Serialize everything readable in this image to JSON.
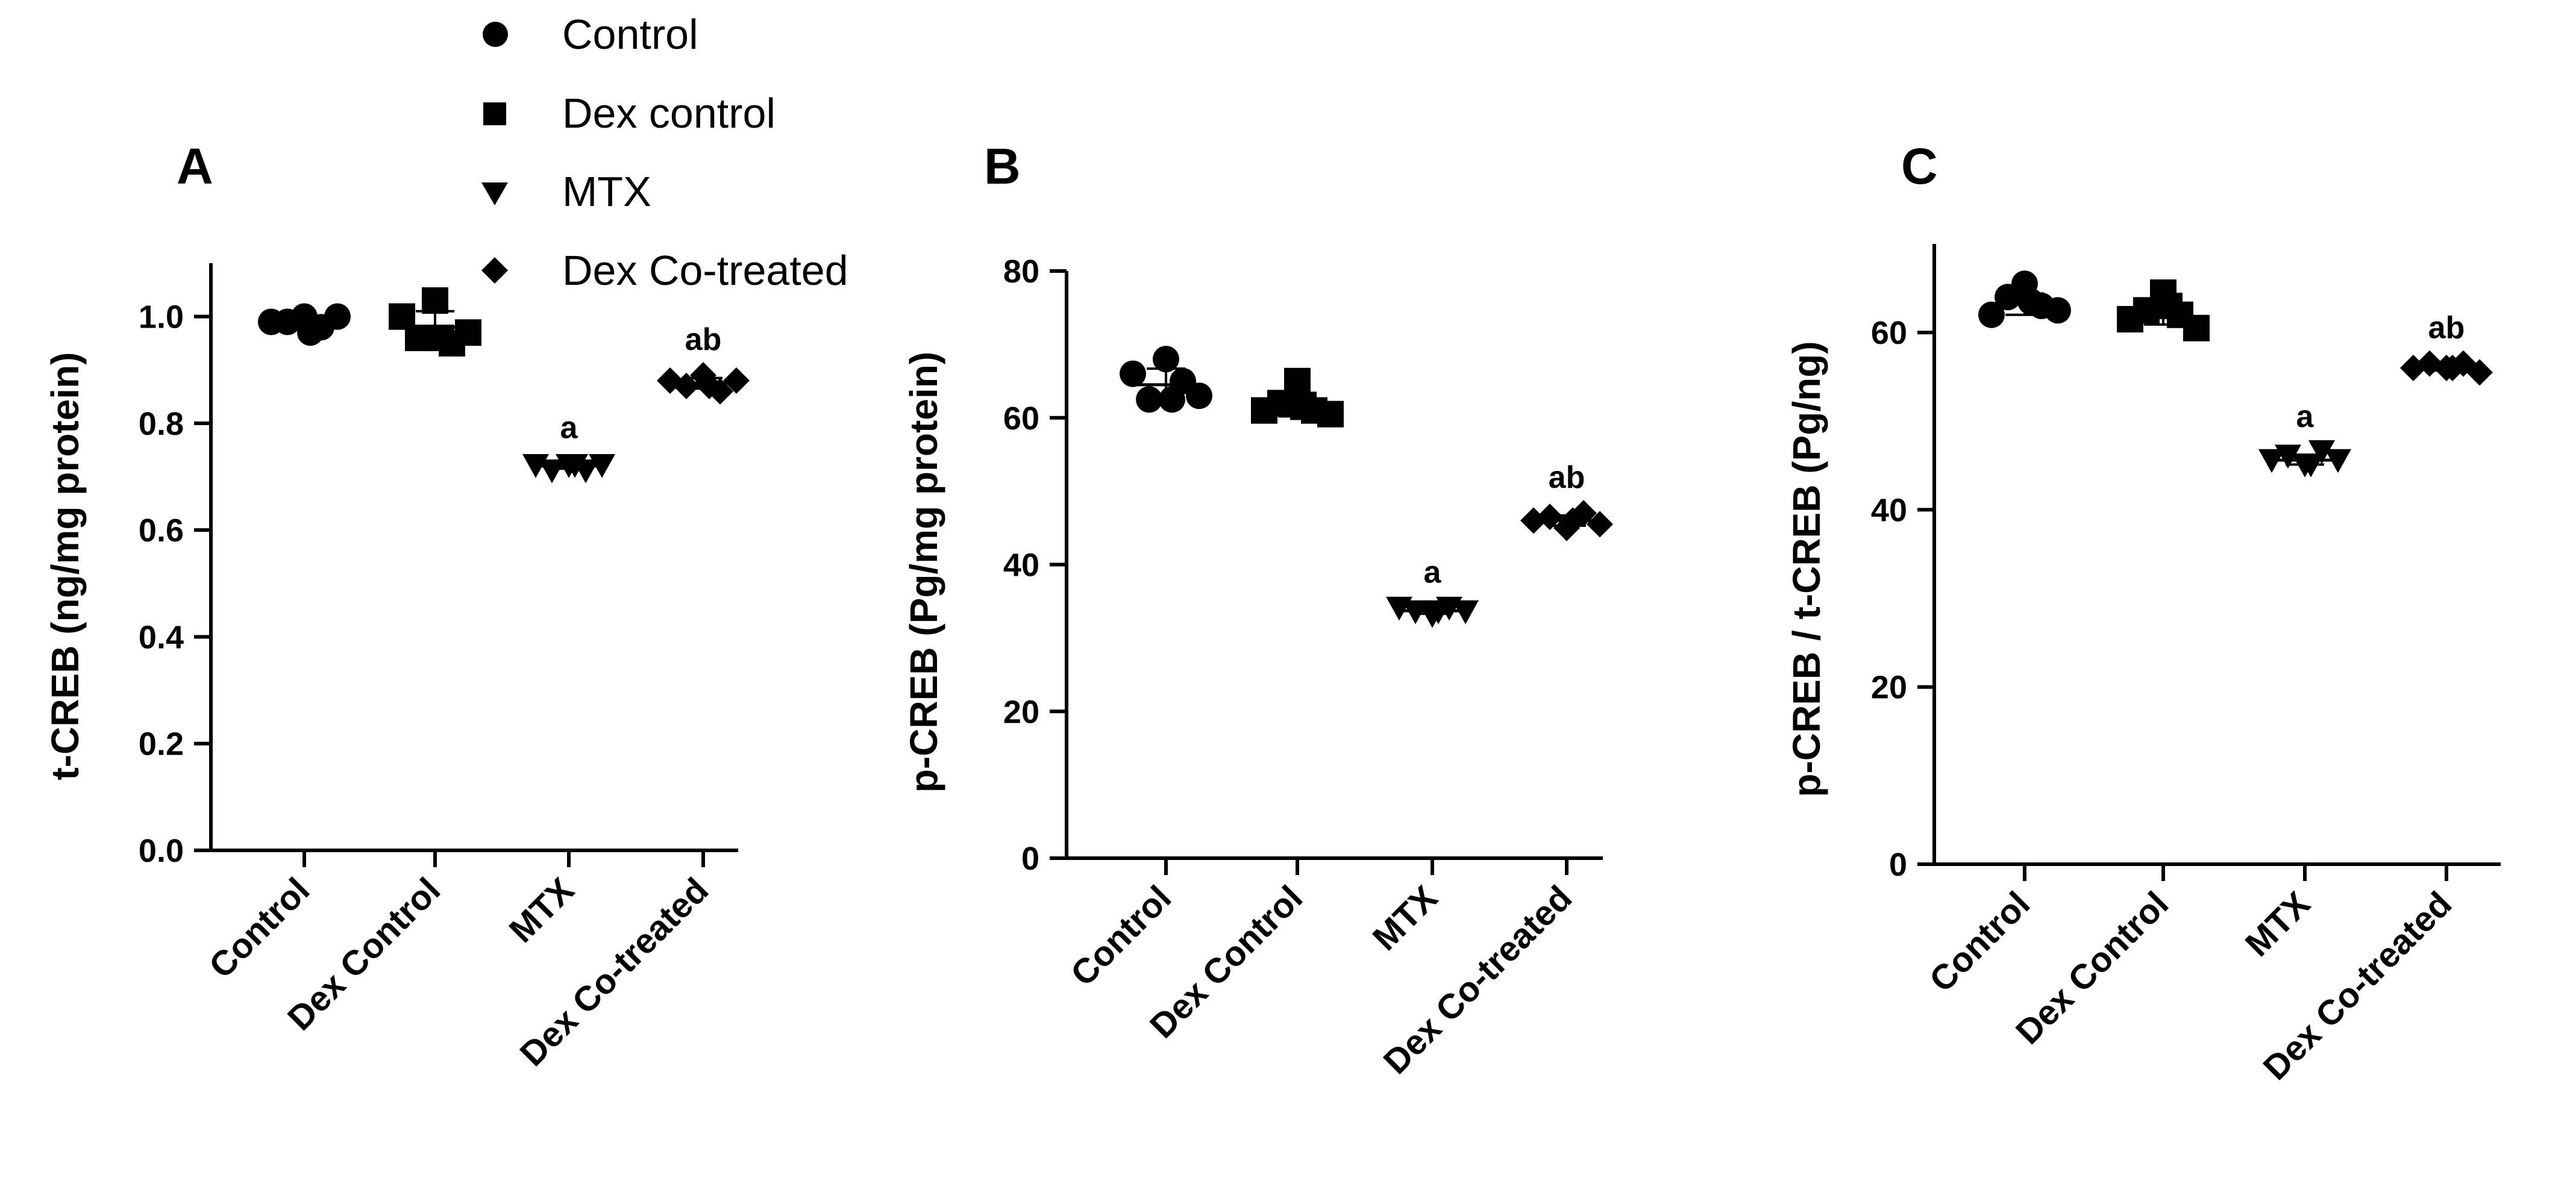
{
  "legend": [
    {
      "name": "Control",
      "marker": "circle"
    },
    {
      "name": "Dex control",
      "marker": "square"
    },
    {
      "name": "MTX",
      "marker": "triangle-down"
    },
    {
      "name": "Dex Co-treated",
      "marker": "diamond"
    }
  ],
  "chart_data": [
    {
      "type": "scatter",
      "panel": "A",
      "ylabel": "t-CREB (ng/mg protein)",
      "ylim": [
        0,
        1.1
      ],
      "yticks": [
        0.0,
        0.2,
        0.4,
        0.6,
        0.8,
        1.0
      ],
      "ytick_labels": [
        "0.0",
        "0.2",
        "0.4",
        "0.6",
        "0.8",
        "1.0"
      ],
      "categories": [
        "Control",
        "Dex Control",
        "MTX",
        "Dex Co-treated"
      ],
      "markers": [
        "circle",
        "square",
        "triangle-down",
        "diamond"
      ],
      "points": [
        [
          0.99,
          0.99,
          1.0,
          0.98,
          1.0,
          0.97
        ],
        [
          1.0,
          0.96,
          1.03,
          0.95,
          0.97,
          0.96
        ],
        [
          0.72,
          0.71,
          0.72,
          0.71,
          0.72,
          0.72
        ],
        [
          0.88,
          0.87,
          0.89,
          0.86,
          0.88,
          0.87
        ]
      ],
      "mean": [
        0.99,
        0.98,
        0.72,
        0.875
      ],
      "sd": [
        0.01,
        0.03,
        0.005,
        0.01
      ],
      "annotations": [
        "",
        "",
        "a",
        "ab"
      ]
    },
    {
      "type": "scatter",
      "panel": "B",
      "ylabel": "p-CREB (Pg/mg protein)",
      "ylim": [
        0,
        80
      ],
      "yticks": [
        0,
        20,
        40,
        60,
        80
      ],
      "ytick_labels": [
        "0",
        "20",
        "40",
        "60",
        "80"
      ],
      "categories": [
        "Control",
        "Dex Control",
        "MTX",
        "Dex Co-treated"
      ],
      "markers": [
        "circle",
        "square",
        "triangle-down",
        "diamond"
      ],
      "points": [
        [
          66,
          62.5,
          68,
          65,
          63,
          62.5
        ],
        [
          61,
          62,
          65,
          61,
          60.5,
          61.5
        ],
        [
          34,
          33.5,
          33,
          34,
          33.5,
          33.5
        ],
        [
          46,
          46.5,
          45,
          47,
          45.5,
          46
        ]
      ],
      "mean": [
        64.5,
        61.8,
        33.7,
        46
      ],
      "sd": [
        2.2,
        1.6,
        0.4,
        0.7
      ],
      "annotations": [
        "",
        "",
        "a",
        "ab"
      ]
    },
    {
      "type": "scatter",
      "panel": "C",
      "ylabel": "p-CREB / t-CREB (Pg/ng)",
      "ylim": [
        0,
        70
      ],
      "yticks": [
        0,
        20,
        40,
        60
      ],
      "ytick_labels": [
        "0",
        "20",
        "40",
        "60"
      ],
      "categories": [
        "Control",
        "Dex Control",
        "MTX",
        "Dex Co-treated"
      ],
      "markers": [
        "circle",
        "square",
        "triangle-down",
        "diamond"
      ],
      "points": [
        [
          62,
          64,
          65.5,
          63,
          62.5,
          63.5
        ],
        [
          61.5,
          62.5,
          64.5,
          62,
          60.5,
          63
        ],
        [
          45.5,
          46,
          45,
          46.5,
          45.5,
          45
        ],
        [
          56,
          56.5,
          56,
          56.5,
          55.5,
          56
        ]
      ],
      "mean": [
        63.2,
        62.3,
        45.6,
        56
      ],
      "sd": [
        1.2,
        1.4,
        0.5,
        0.3
      ],
      "annotations": [
        "",
        "",
        "a",
        "ab"
      ]
    }
  ]
}
